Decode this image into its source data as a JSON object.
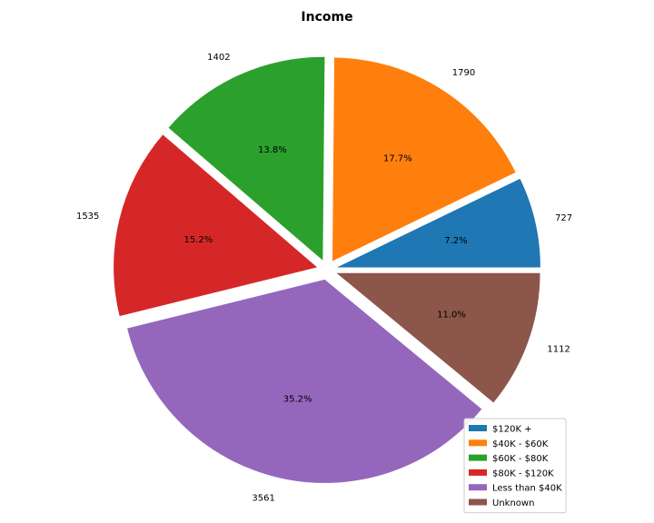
{
  "chart_data": {
    "type": "pie",
    "title": "Income",
    "start_angle_deg": 0,
    "direction": "counterclockwise",
    "explode": 0.05,
    "legend_placement": "lower-right",
    "slices": [
      {
        "label": "$120K +",
        "value": 727,
        "pct_label": "7.2%",
        "color": "#1f77b4"
      },
      {
        "label": "$40K - $60K",
        "value": 1790,
        "pct_label": "17.7%",
        "color": "#ff7f0e"
      },
      {
        "label": "$60K - $80K",
        "value": 1402,
        "pct_label": "13.8%",
        "color": "#2ca02c"
      },
      {
        "label": "$80K - $120K",
        "value": 1535,
        "pct_label": "15.2%",
        "color": "#d62728"
      },
      {
        "label": "Less than $40K",
        "value": 3561,
        "pct_label": "35.2%",
        "color": "#9467bd"
      },
      {
        "label": "Unknown",
        "value": 1112,
        "pct_label": "11.0%",
        "color": "#8c564b"
      }
    ]
  }
}
